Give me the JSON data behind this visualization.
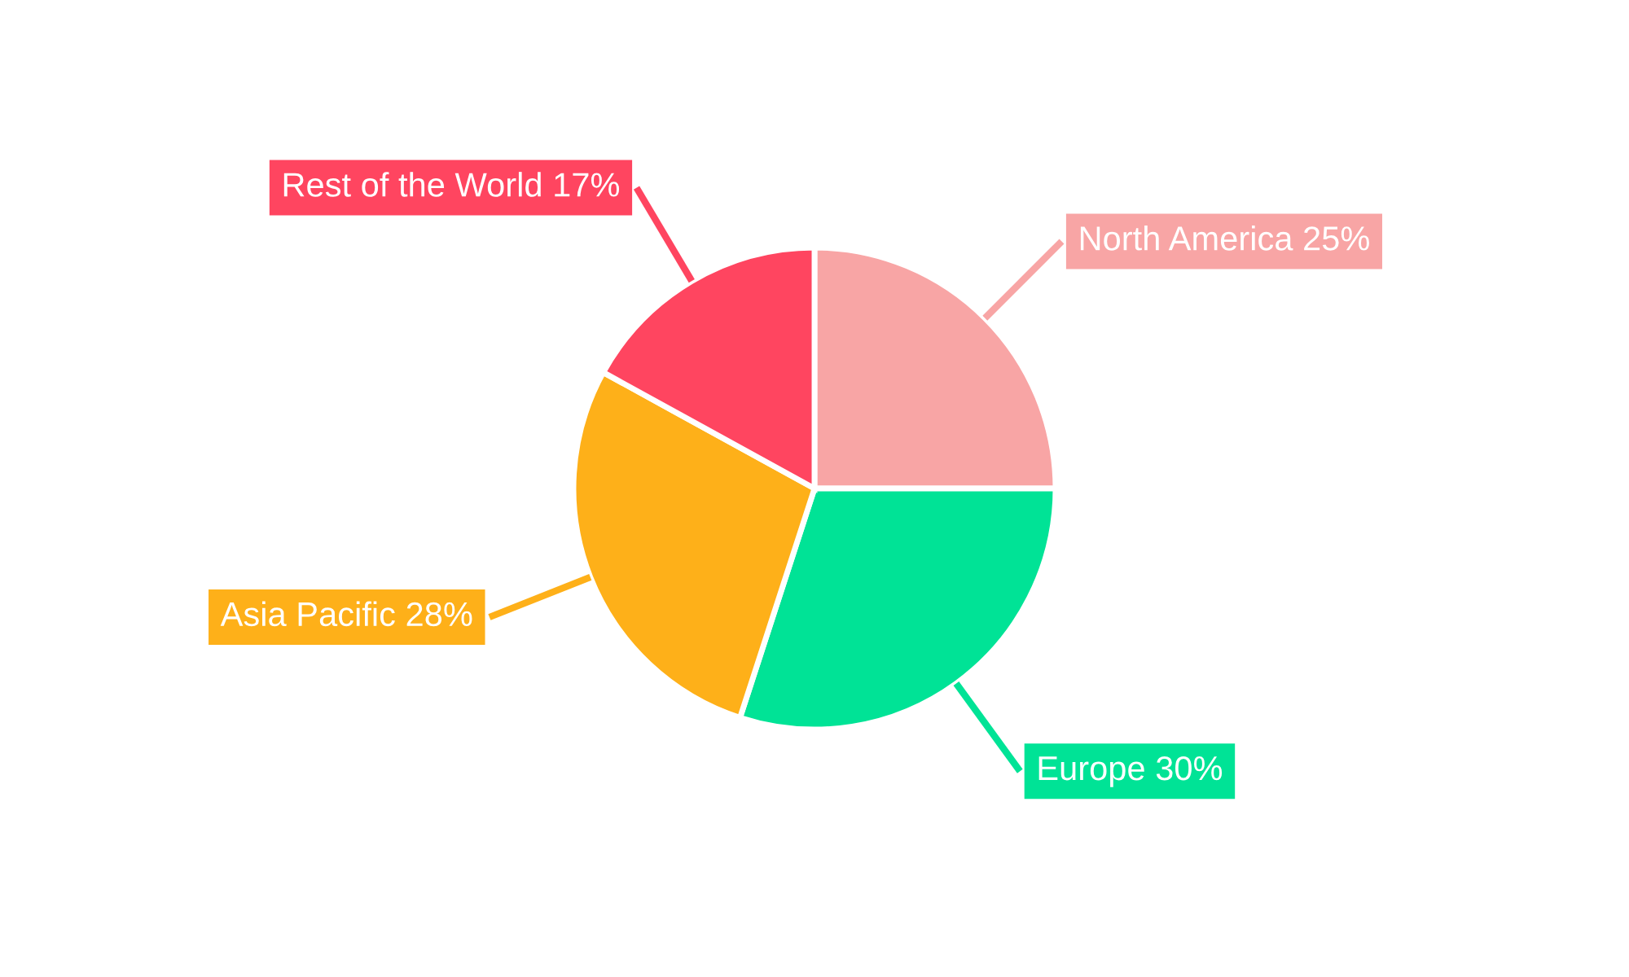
{
  "chart_data": {
    "type": "pie",
    "categories": [
      "North America",
      "Europe",
      "Asia Pacific",
      "Rest of the World"
    ],
    "values": [
      25,
      30,
      28,
      17
    ],
    "value_labels": [
      "25%",
      "30%",
      "28%",
      "17%"
    ],
    "colors": [
      "#f8a5a5",
      "#00e396",
      "#feb019",
      "#ff4560"
    ],
    "legend": false
  }
}
